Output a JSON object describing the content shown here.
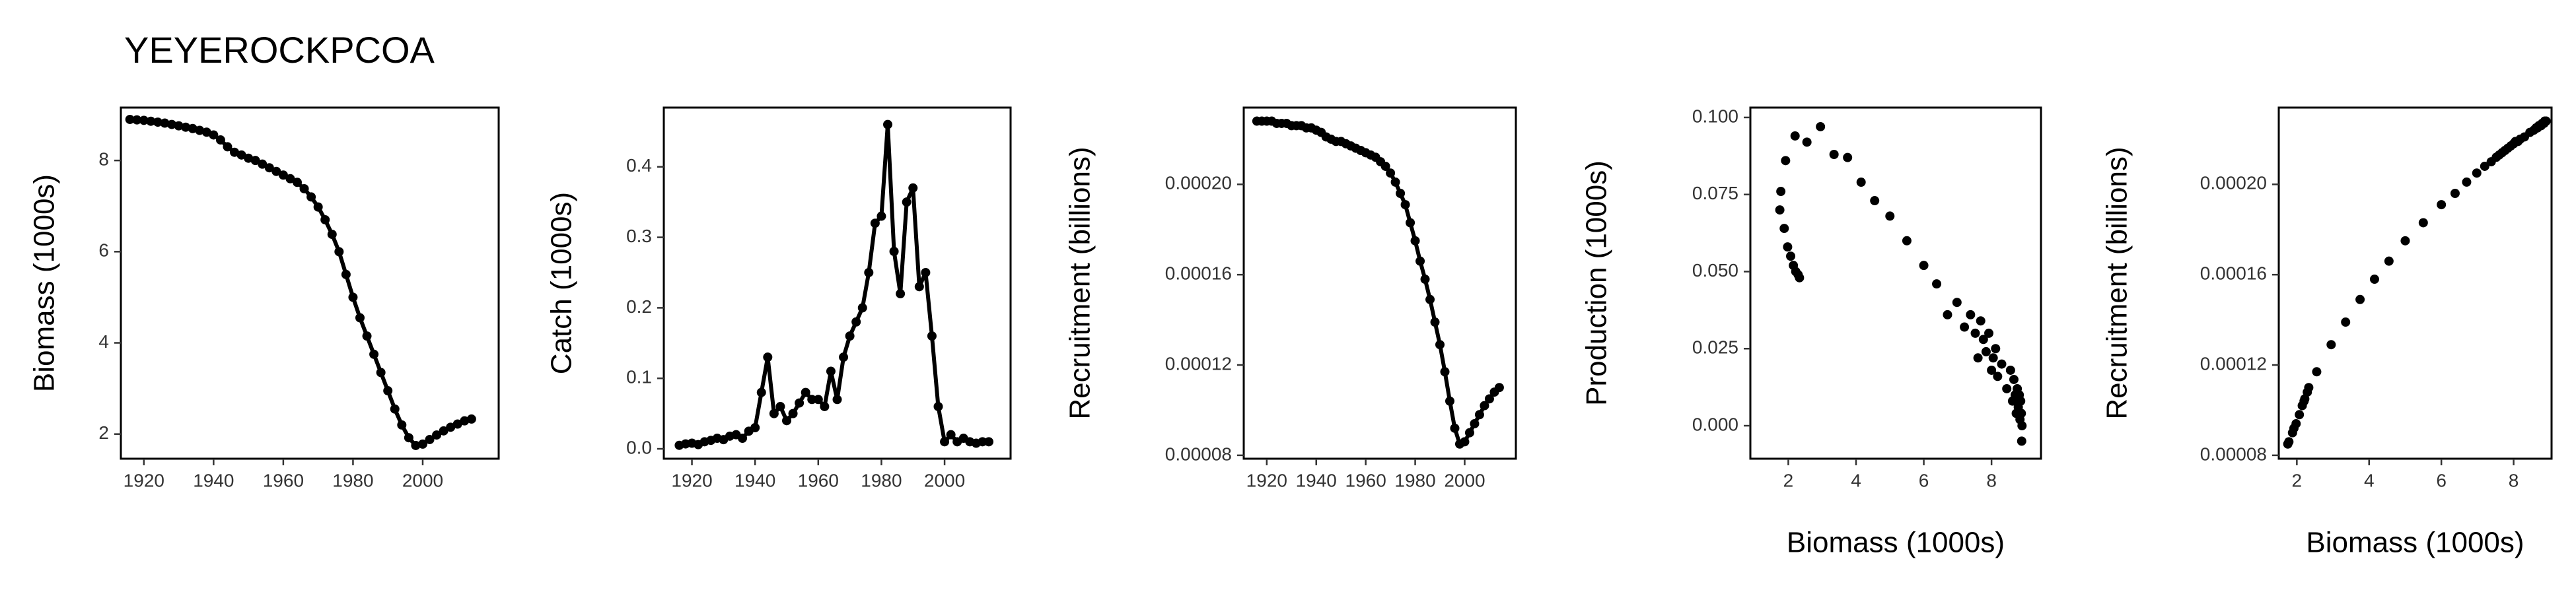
{
  "chart_data": [
    {
      "type": "line",
      "title": "YEYEROCKPCOA",
      "y_label": "Biomass (1000s)",
      "color": "#000000",
      "x": [
        1916,
        1918,
        1920,
        1922,
        1924,
        1926,
        1928,
        1930,
        1932,
        1934,
        1936,
        1938,
        1940,
        1942,
        1944,
        1946,
        1948,
        1950,
        1952,
        1954,
        1956,
        1958,
        1960,
        1962,
        1964,
        1966,
        1968,
        1970,
        1972,
        1974,
        1976,
        1978,
        1980,
        1982,
        1984,
        1986,
        1988,
        1990,
        1992,
        1994,
        1996,
        1998,
        2000,
        2002,
        2004,
        2006,
        2008,
        2010,
        2012,
        2014
      ],
      "values": [
        8.9,
        8.89,
        8.88,
        8.86,
        8.84,
        8.82,
        8.79,
        8.76,
        8.73,
        8.7,
        8.66,
        8.62,
        8.56,
        8.45,
        8.3,
        8.18,
        8.12,
        8.05,
        8.0,
        7.92,
        7.84,
        7.76,
        7.68,
        7.6,
        7.52,
        7.38,
        7.2,
        6.98,
        6.7,
        6.38,
        6.0,
        5.5,
        5.0,
        4.55,
        4.15,
        3.75,
        3.35,
        2.95,
        2.55,
        2.2,
        1.92,
        1.75,
        1.78,
        1.88,
        1.98,
        2.07,
        2.15,
        2.22,
        2.29,
        2.33
      ],
      "xlim": [
        1913.4,
        2021.8
      ],
      "ylim": [
        1.46,
        9.16
      ],
      "xticks": [
        1920,
        1940,
        1960,
        1980,
        2000
      ],
      "yticks": [
        2,
        4,
        6,
        8
      ]
    },
    {
      "type": "line",
      "y_label": "Catch (1000s)",
      "color": "#000000",
      "x": [
        1916,
        1918,
        1920,
        1922,
        1924,
        1926,
        1928,
        1930,
        1932,
        1934,
        1936,
        1938,
        1940,
        1942,
        1944,
        1946,
        1948,
        1950,
        1952,
        1954,
        1956,
        1958,
        1960,
        1962,
        1964,
        1966,
        1968,
        1970,
        1972,
        1974,
        1976,
        1978,
        1980,
        1982,
        1984,
        1986,
        1988,
        1990,
        1992,
        1994,
        1996,
        1998,
        2000,
        2002,
        2004,
        2006,
        2008,
        2010,
        2012,
        2014
      ],
      "values": [
        0.005,
        0.007,
        0.008,
        0.006,
        0.01,
        0.012,
        0.015,
        0.013,
        0.018,
        0.02,
        0.015,
        0.025,
        0.03,
        0.08,
        0.13,
        0.05,
        0.06,
        0.04,
        0.05,
        0.065,
        0.08,
        0.07,
        0.07,
        0.06,
        0.11,
        0.07,
        0.13,
        0.16,
        0.18,
        0.2,
        0.25,
        0.32,
        0.33,
        0.46,
        0.28,
        0.22,
        0.35,
        0.37,
        0.23,
        0.25,
        0.16,
        0.06,
        0.01,
        0.02,
        0.01,
        0.015,
        0.01,
        0.008,
        0.01,
        0.01
      ],
      "xlim": [
        1911.1,
        2020.9
      ],
      "ylim": [
        -0.014,
        0.484
      ],
      "xticks": [
        1920,
        1940,
        1960,
        1980,
        2000
      ],
      "yticks": [
        {
          "value": 0,
          "label": "0.0"
        },
        0.1,
        0.2,
        0.3,
        0.4
      ]
    },
    {
      "type": "line",
      "y_label": "Recruitment (billions)",
      "color": "#000000",
      "x": [
        1916,
        1918,
        1920,
        1922,
        1924,
        1926,
        1928,
        1930,
        1932,
        1934,
        1936,
        1938,
        1940,
        1942,
        1944,
        1946,
        1948,
        1950,
        1952,
        1954,
        1956,
        1958,
        1960,
        1962,
        1964,
        1966,
        1968,
        1970,
        1972,
        1974,
        1976,
        1978,
        1980,
        1982,
        1984,
        1986,
        1988,
        1990,
        1992,
        1994,
        1996,
        1998,
        2000,
        2002,
        2004,
        2006,
        2008,
        2010,
        2012,
        2014
      ],
      "values": [
        0.000228,
        0.000228,
        0.000228,
        0.000228,
        0.000227,
        0.000227,
        0.000227,
        0.000226,
        0.000226,
        0.000226,
        0.000225,
        0.000225,
        0.000224,
        0.000223,
        0.000221,
        0.00022,
        0.000219,
        0.000219,
        0.000218,
        0.000217,
        0.000216,
        0.000215,
        0.000214,
        0.000213,
        0.000212,
        0.00021,
        0.000208,
        0.000205,
        0.000201,
        0.000196,
        0.000191,
        0.000183,
        0.000175,
        0.000166,
        0.000158,
        0.000149,
        0.000139,
        0.000129,
        0.000117,
        0.000104,
        9.2e-05,
        8.5e-05,
        8.6e-05,
        9e-05,
        9.4e-05,
        9.8e-05,
        0.000102,
        0.000105,
        0.000108,
        0.00011
      ],
      "xlim": [
        1910.7,
        2020.7
      ],
      "ylim": [
        7.85e-05,
        0.000234
      ],
      "xticks": [
        1920,
        1940,
        1960,
        1980,
        2000
      ],
      "yticks": [
        {
          "value": 8e-05,
          "label": "0.00008"
        },
        {
          "value": 0.00012,
          "label": "0.00012"
        },
        {
          "value": 0.00016,
          "label": "0.00016"
        },
        {
          "value": 0.0002,
          "label": "0.00020"
        }
      ]
    },
    {
      "type": "scatter",
      "y_label": "Production (1000s)",
      "x_label": "Biomass (1000s)",
      "color": "#000000",
      "x": [
        8.9,
        8.89,
        8.88,
        8.86,
        8.84,
        8.82,
        8.79,
        8.76,
        8.73,
        8.7,
        8.66,
        8.62,
        8.56,
        8.45,
        8.3,
        8.18,
        8.12,
        8.05,
        8.0,
        7.92,
        7.84,
        7.76,
        7.68,
        7.6,
        7.52,
        7.38,
        7.2,
        6.98,
        6.7,
        6.38,
        6.0,
        5.5,
        5.0,
        4.55,
        4.15,
        3.75,
        3.35,
        2.95,
        2.55,
        2.2,
        1.92,
        1.75,
        1.78,
        1.88,
        1.98,
        2.07,
        2.15,
        2.22,
        2.29,
        2.33
      ],
      "values": [
        0.0,
        -0.005,
        0.004,
        0.008,
        0.002,
        0.01,
        0.006,
        0.012,
        0.004,
        0.01,
        0.015,
        0.008,
        0.018,
        0.012,
        0.02,
        0.016,
        0.025,
        0.022,
        0.018,
        0.03,
        0.024,
        0.028,
        0.034,
        0.022,
        0.03,
        0.036,
        0.032,
        0.04,
        0.036,
        0.046,
        0.052,
        0.06,
        0.068,
        0.073,
        0.079,
        0.087,
        0.088,
        0.097,
        0.092,
        0.094,
        0.086,
        0.07,
        0.076,
        0.064,
        0.058,
        0.055,
        0.052,
        0.05,
        0.049,
        0.048
      ],
      "xlim": [
        0.88,
        9.46
      ],
      "ylim": [
        -0.0107,
        0.1032
      ],
      "xticks": [
        2,
        4,
        6,
        8
      ],
      "yticks": [
        {
          "value": 0,
          "label": "0.000"
        },
        {
          "value": 0.025,
          "label": "0.025"
        },
        {
          "value": 0.05,
          "label": "0.050"
        },
        {
          "value": 0.075,
          "label": "0.075"
        },
        {
          "value": 0.1,
          "label": "0.100"
        }
      ]
    },
    {
      "type": "scatter",
      "y_label": "Recruitment (billions)",
      "x_label": "Biomass (1000s)",
      "color": "#000000",
      "x": [
        8.9,
        8.89,
        8.88,
        8.86,
        8.84,
        8.82,
        8.79,
        8.76,
        8.73,
        8.7,
        8.66,
        8.62,
        8.56,
        8.45,
        8.3,
        8.18,
        8.12,
        8.05,
        8.0,
        7.92,
        7.84,
        7.76,
        7.68,
        7.6,
        7.52,
        7.38,
        7.2,
        6.98,
        6.7,
        6.38,
        6.0,
        5.5,
        5.0,
        4.55,
        4.15,
        3.75,
        3.35,
        2.95,
        2.55,
        2.2,
        1.92,
        1.75,
        1.78,
        1.88,
        1.98,
        2.07,
        2.15,
        2.22,
        2.29,
        2.33
      ],
      "values": [
        0.000228,
        0.000228,
        0.000228,
        0.000228,
        0.000227,
        0.000227,
        0.000227,
        0.000226,
        0.000226,
        0.000226,
        0.000225,
        0.000225,
        0.000224,
        0.000223,
        0.000221,
        0.00022,
        0.000219,
        0.000219,
        0.000218,
        0.000217,
        0.000216,
        0.000215,
        0.000214,
        0.000213,
        0.000212,
        0.00021,
        0.000208,
        0.000205,
        0.000201,
        0.000196,
        0.000191,
        0.000183,
        0.000175,
        0.000166,
        0.000158,
        0.000149,
        0.000139,
        0.000129,
        0.000117,
        0.000104,
        9.2e-05,
        8.5e-05,
        8.6e-05,
        9e-05,
        9.4e-05,
        9.8e-05,
        0.000102,
        0.000105,
        0.000108,
        0.00011
      ],
      "xlim": [
        1.5,
        9.05
      ],
      "ylim": [
        7.85e-05,
        0.000234
      ],
      "xticks": [
        2,
        4,
        6,
        8
      ],
      "yticks": [
        {
          "value": 8e-05,
          "label": "0.00008"
        },
        {
          "value": 0.00012,
          "label": "0.00012"
        },
        {
          "value": 0.00016,
          "label": "0.00016"
        },
        {
          "value": 0.0002,
          "label": "0.00020"
        }
      ]
    }
  ]
}
